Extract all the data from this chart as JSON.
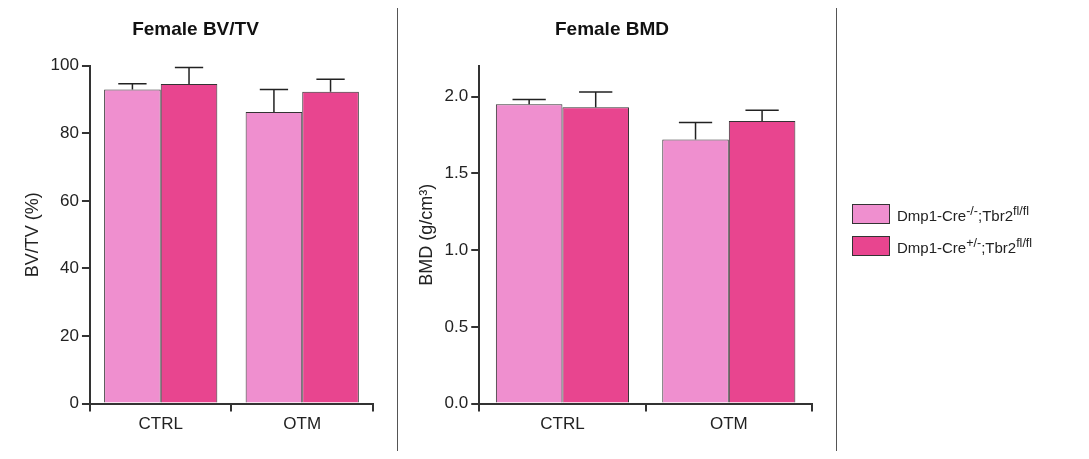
{
  "chart_data": [
    {
      "type": "bar",
      "title": "Female BV/TV",
      "ylabel": "BV/TV (%)",
      "categories": [
        "CTRL",
        "OTM"
      ],
      "ylim": [
        0,
        100
      ],
      "yticks": [
        0,
        20,
        40,
        60,
        80,
        100
      ],
      "grid": false,
      "legend": false,
      "series": [
        {
          "color": "#ef8fcf",
          "values": [
            93,
            86.3
          ],
          "errors": [
            1.7,
            6.7
          ]
        },
        {
          "color": "#e8458f",
          "values": [
            94.6,
            92.3
          ],
          "errors": [
            4.9,
            3.7
          ]
        }
      ]
    },
    {
      "type": "bar",
      "title": "Female BMD",
      "ylabel": "BMD (g/cm³)",
      "categories": [
        "CTRL",
        "OTM"
      ],
      "ylim": [
        0,
        2.2
      ],
      "yticks": [
        {
          "value": 0,
          "label": "0.0"
        },
        0.5,
        {
          "value": 1,
          "label": "1.0"
        },
        1.5,
        {
          "value": 2,
          "label": "2.0"
        }
      ],
      "grid": false,
      "legend": "right",
      "series": [
        {
          "name": "Dmp1-Cre$^{-/-}$;Tbr2$^{fl/fl}$",
          "color": "#ef8fcf",
          "values": [
            1.95,
            1.72
          ],
          "errors": [
            0.03,
            0.11
          ]
        },
        {
          "name": "Dmp1-Cre$^{+/-}$;Tbr2$^{fl/fl}$",
          "color": "#e8458f",
          "values": [
            1.93,
            1.84
          ],
          "errors": [
            0.1,
            0.07
          ]
        }
      ]
    }
  ]
}
